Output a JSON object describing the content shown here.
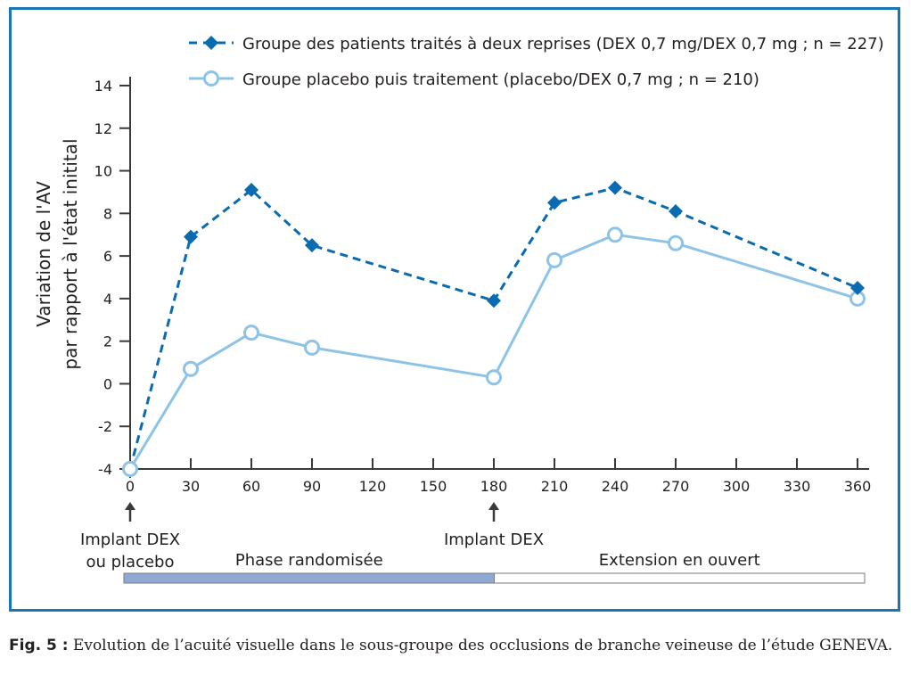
{
  "chart_data": {
    "type": "line",
    "title": "",
    "xlabel": "",
    "ylabel_line1": "Variation de l'AV",
    "ylabel_line2": "par rapport à l'état initital",
    "xlim": [
      0,
      360
    ],
    "ylim": [
      -4,
      14
    ],
    "x_ticks": [
      0,
      30,
      60,
      90,
      120,
      150,
      180,
      210,
      240,
      270,
      300,
      330,
      360
    ],
    "x_tick_labels": [
      "0",
      "30",
      "60",
      "90",
      "120",
      "150",
      "180",
      "210",
      "240",
      "270",
      "300",
      "330",
      "360"
    ],
    "y_ticks": [
      -4,
      -2,
      0,
      2,
      4,
      6,
      8,
      10,
      12,
      14
    ],
    "y_tick_labels": [
      "-4",
      "-2",
      "0",
      "2",
      "4",
      "6",
      "8",
      "10",
      "12",
      "14"
    ],
    "grid": false,
    "legend_position": "top-right",
    "x": [
      0,
      30,
      60,
      90,
      180,
      210,
      240,
      270,
      360
    ],
    "series": [
      {
        "name": "Groupe des patients traités à deux reprises (DEX 0,7 mg/DEX 0,7 mg ; n = 227)",
        "marker": "diamond",
        "line_style": "dashed",
        "color": "#0a6bb0",
        "values": [
          -4,
          6.9,
          9.1,
          6.5,
          3.9,
          8.5,
          9.2,
          8.1,
          4.5
        ]
      },
      {
        "name": "Groupe placebo puis traitement (placebo/DEX 0,7 mg ; n = 210)",
        "marker": "open-circle",
        "line_style": "solid",
        "color": "#8cc3e6",
        "values": [
          -4,
          0.7,
          2.4,
          1.7,
          0.3,
          5.8,
          7.0,
          6.6,
          4.0
        ]
      }
    ],
    "annotations": [
      {
        "x": 0,
        "label_line1": "Implant DEX",
        "label_line2": "ou placebo",
        "arrow": "up"
      },
      {
        "x": 180,
        "label_line1": "Implant DEX",
        "label_line2": "",
        "arrow": "up"
      }
    ],
    "phases": [
      {
        "label": "Phase randomisée",
        "start": 0,
        "end": 180,
        "fill": "#8ea9d3"
      },
      {
        "label": "Extension en ouvert",
        "start": 180,
        "end": 360,
        "fill": "#ffffff"
      }
    ]
  },
  "caption": {
    "fig_label": "Fig. 5 :",
    "text": " Evolution de l’acuité visuelle dans le sous-groupe des occlusions de branche veineuse de l’étude GENEVA."
  },
  "colors": {
    "frame": "#1a75b8",
    "axis": "#3a3a3a",
    "text": "#231f20"
  }
}
